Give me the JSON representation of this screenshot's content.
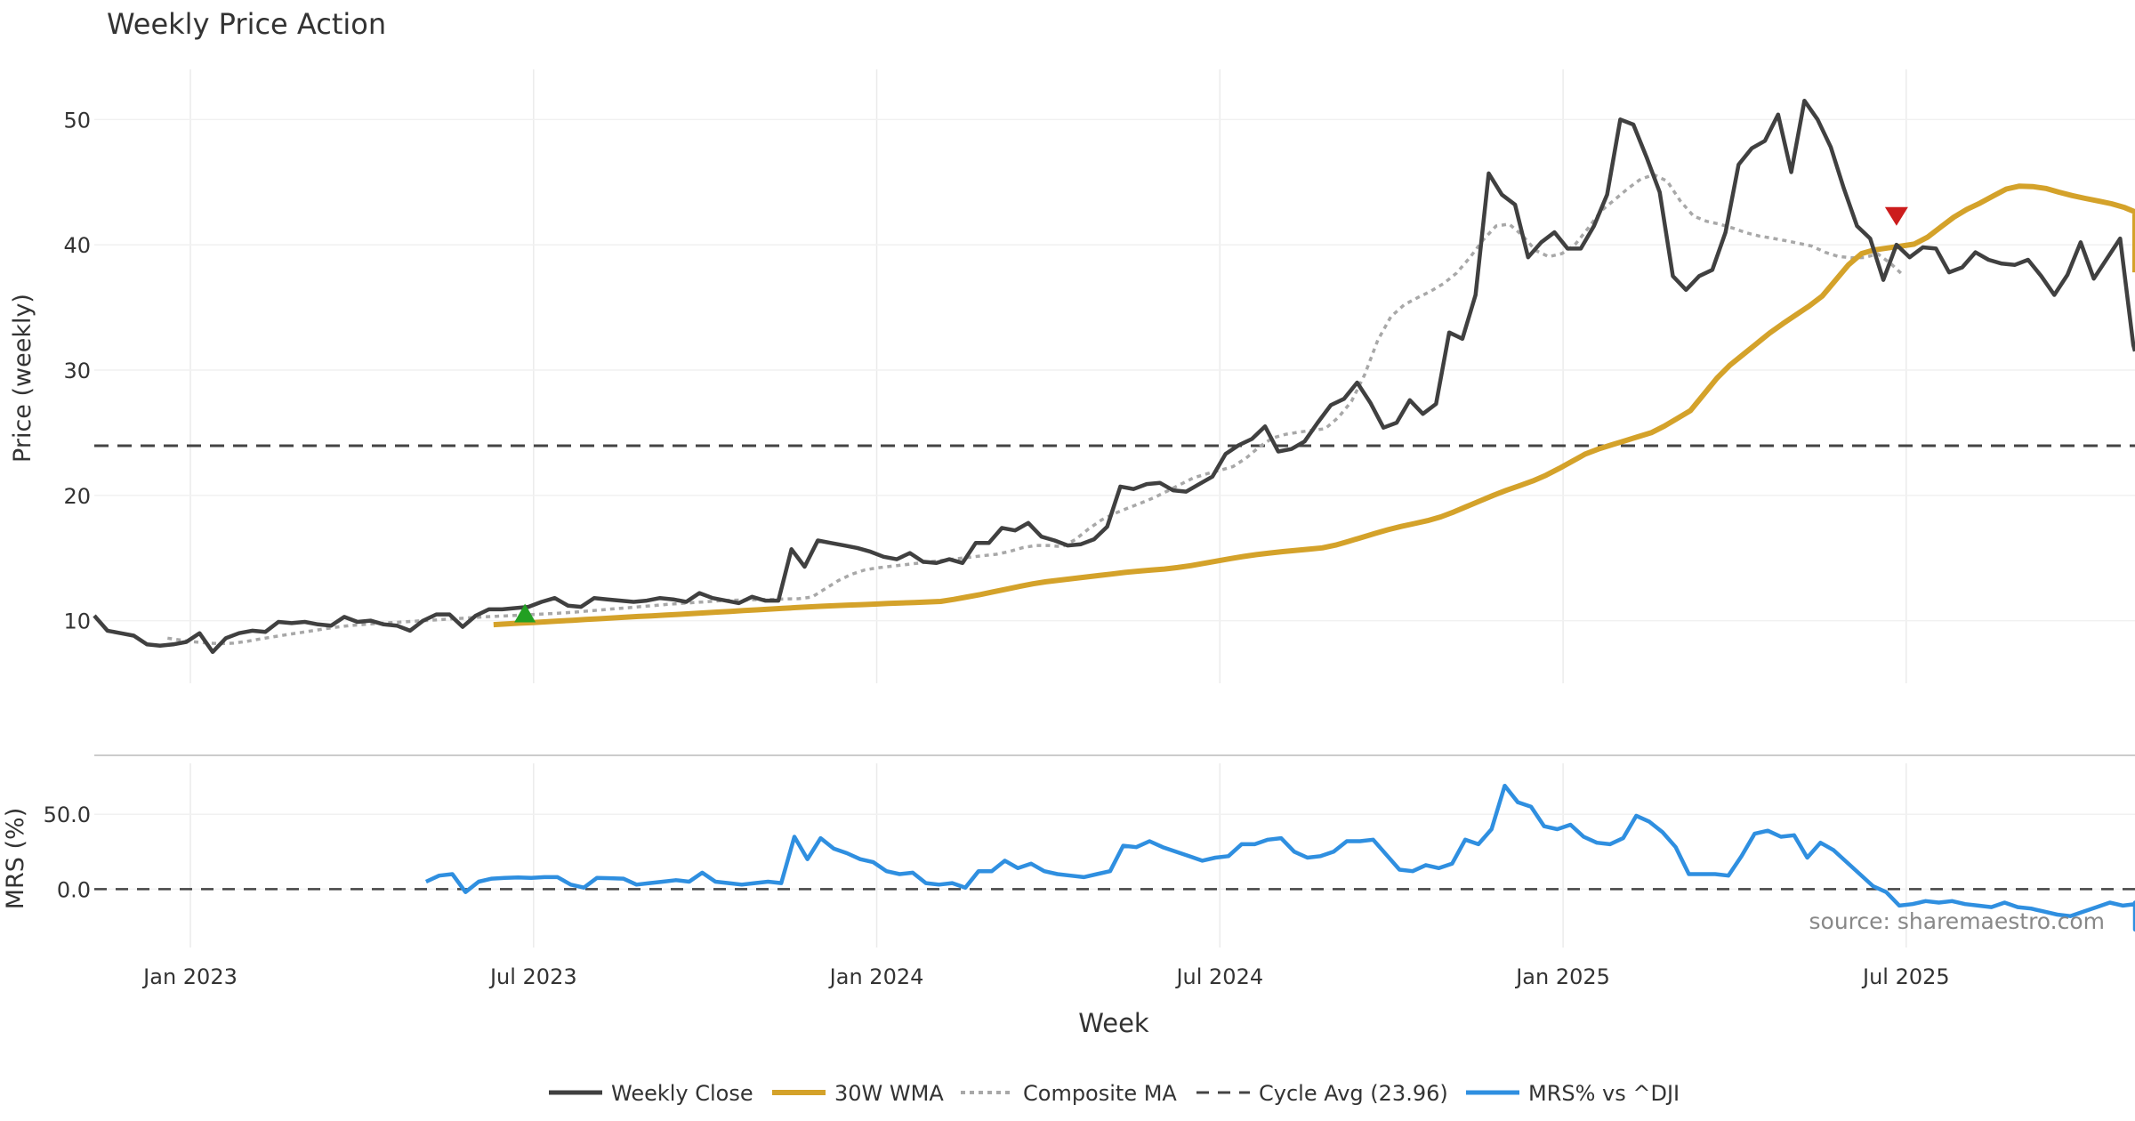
{
  "chart_data": {
    "type": "line",
    "title": "Weekly Price Action",
    "xlabel": "Week",
    "x_ticks": [
      "Jan 2023",
      "Jul 2023",
      "Jan 2024",
      "Jul 2024",
      "Jan 2025",
      "Jul 2025"
    ],
    "x_tick_months": [
      0,
      6,
      12,
      18,
      24,
      30
    ],
    "x_range_months": [
      -1.68,
      34.0
    ],
    "price_panel": {
      "ylabel": "Price (weekly)",
      "ylim": [
        5,
        54
      ],
      "yticks": [
        10,
        20,
        30,
        40,
        50
      ],
      "series": [
        {
          "name": "Weekly Close",
          "color": "#404040",
          "x_start": -1.68,
          "x_step": 0.23,
          "values": [
            10.4,
            9.2,
            9.0,
            8.8,
            8.1,
            8.0,
            8.1,
            8.3,
            9.0,
            7.5,
            8.6,
            9.0,
            9.2,
            9.1,
            9.9,
            9.8,
            9.9,
            9.7,
            9.6,
            10.3,
            9.9,
            10.0,
            9.7,
            9.6,
            9.2,
            10.0,
            10.5,
            10.5,
            9.5,
            10.4,
            10.9,
            10.9,
            11.0,
            11.1,
            11.5,
            11.8,
            11.2,
            11.1,
            11.8,
            11.7,
            11.6,
            11.5,
            11.6,
            11.8,
            11.7,
            11.5,
            12.2,
            11.8,
            11.6,
            11.4,
            11.9,
            11.6,
            11.6,
            15.7,
            14.3,
            16.4,
            16.2,
            16.0,
            15.8,
            15.5,
            15.1,
            14.9,
            15.4,
            14.7,
            14.6,
            14.9,
            14.6,
            16.2,
            16.2,
            17.4,
            17.2,
            17.8,
            16.7,
            16.4,
            16.0,
            16.1,
            16.5,
            17.5,
            20.7,
            20.5,
            20.9,
            21.0,
            20.4,
            20.3,
            20.9,
            21.5,
            23.3,
            24.0,
            24.5,
            25.5,
            23.5,
            23.7,
            24.3,
            25.8,
            27.2,
            27.7,
            29.0,
            27.4,
            25.4,
            25.8,
            27.6,
            26.5,
            27.3,
            33.0,
            32.5,
            36.0,
            45.7,
            44.0,
            43.2,
            39.0,
            40.2,
            41.0,
            39.7,
            39.7,
            41.5,
            44.0,
            50.0,
            49.6,
            47.0,
            44.2,
            37.5,
            36.4,
            37.5,
            38.0,
            41.0,
            46.4,
            47.7,
            48.3,
            50.4,
            45.8,
            51.5,
            50.0,
            47.8,
            44.5,
            41.5,
            40.5,
            37.2,
            40.0,
            39.0,
            39.8,
            39.7,
            37.8,
            38.2,
            39.4,
            38.8,
            38.5,
            38.4,
            38.8,
            37.5,
            36.0,
            37.6,
            40.2,
            37.3,
            38.9,
            40.5,
            32.0,
            31.5
          ]
        },
        {
          "name": "30W WMA",
          "color": "#d4a22a",
          "x_start": 5.3,
          "x_step": 0.23,
          "values": [
            9.68,
            9.74,
            9.8,
            9.85,
            9.91,
            9.97,
            10.03,
            10.09,
            10.15,
            10.21,
            10.27,
            10.33,
            10.38,
            10.44,
            10.5,
            10.56,
            10.62,
            10.68,
            10.74,
            10.8,
            10.86,
            10.92,
            10.98,
            11.04,
            11.1,
            11.15,
            11.2,
            11.24,
            11.28,
            11.32,
            11.37,
            11.41,
            11.45,
            11.49,
            11.53,
            11.7,
            11.89,
            12.08,
            12.3,
            12.51,
            12.73,
            12.94,
            13.1,
            13.23,
            13.35,
            13.48,
            13.6,
            13.72,
            13.85,
            13.95,
            14.03,
            14.12,
            14.24,
            14.39,
            14.57,
            14.76,
            14.95,
            15.12,
            15.27,
            15.4,
            15.51,
            15.61,
            15.7,
            15.81,
            16.03,
            16.33,
            16.64,
            16.96,
            17.26,
            17.52,
            17.75,
            17.98,
            18.28,
            18.68,
            19.12,
            19.56,
            20.0,
            20.4,
            20.77,
            21.15,
            21.6,
            22.14,
            22.72,
            23.3,
            23.7,
            24.03,
            24.35,
            24.68,
            25.0,
            25.53,
            26.15,
            26.77,
            28.06,
            29.35,
            30.4,
            31.25,
            32.1,
            32.95,
            33.7,
            34.4,
            35.1,
            35.9,
            37.15,
            38.4,
            39.3,
            39.6,
            39.75,
            39.9,
            40.05,
            40.6,
            41.4,
            42.2,
            42.83,
            43.33,
            43.9,
            44.45,
            44.68,
            44.65,
            44.5,
            44.2,
            43.93,
            43.7,
            43.5,
            43.28,
            42.97,
            42.63,
            42.3,
            41.97,
            41.63,
            41.3,
            40.97,
            40.63,
            40.3,
            40.1,
            39.9,
            39.7,
            39.4,
            38.6,
            37.8
          ]
        },
        {
          "name": "Composite MA",
          "color": "#a8a8a8",
          "x_start": -0.4,
          "x_step": 0.23,
          "values": [
            8.6,
            8.45,
            8.31,
            8.22,
            8.16,
            8.2,
            8.34,
            8.53,
            8.7,
            8.87,
            9.03,
            9.19,
            9.35,
            9.5,
            9.62,
            9.7,
            9.77,
            9.84,
            9.9,
            9.97,
            10.03,
            10.1,
            10.16,
            10.23,
            10.3,
            10.35,
            10.4,
            10.45,
            10.5,
            10.55,
            10.61,
            10.68,
            10.77,
            10.86,
            10.95,
            11.03,
            11.12,
            11.21,
            11.3,
            11.37,
            11.44,
            11.51,
            11.58,
            11.63,
            11.65,
            11.68,
            11.7,
            11.73,
            11.75,
            11.89,
            12.55,
            13.2,
            13.7,
            14.05,
            14.22,
            14.34,
            14.46,
            14.58,
            14.7,
            14.82,
            14.94,
            15.06,
            15.18,
            15.3,
            15.52,
            15.82,
            16.0,
            16.0,
            15.9,
            16.46,
            17.31,
            18.04,
            18.56,
            18.98,
            19.39,
            19.82,
            20.34,
            20.87,
            21.4,
            21.72,
            22.0,
            22.3,
            22.98,
            23.87,
            24.58,
            24.87,
            25.05,
            25.19,
            25.32,
            26.21,
            27.5,
            29.63,
            32.38,
            34.26,
            35.2,
            35.76,
            36.28,
            36.9,
            37.75,
            38.98,
            40.38,
            41.5,
            41.65,
            40.75,
            39.55,
            39.05,
            39.3,
            40.02,
            41.34,
            42.72,
            43.59,
            44.48,
            45.25,
            45.59,
            45.08,
            43.5,
            42.3,
            41.88,
            41.64,
            41.33,
            40.96,
            40.7,
            40.52,
            40.33,
            40.12,
            39.9,
            39.41,
            39.07,
            38.96,
            38.98,
            39.28,
            38.5,
            37.5
          ]
        },
        {
          "name": "Cycle Avg (23.96)",
          "color": "#444444",
          "constant": 23.96
        }
      ],
      "signals": [
        {
          "type": "buy",
          "x_month": 5.85,
          "y": 10.5,
          "color": "#22a022"
        },
        {
          "type": "sell",
          "x_month": 29.83,
          "y": 42.3,
          "color": "#cc1c1c"
        }
      ]
    },
    "mrs_panel": {
      "ylabel": "MRS (%)",
      "ylim": [
        -39,
        84
      ],
      "yticks": [
        0.0,
        50.0
      ],
      "ytick_labels": [
        "0.0",
        "50.0"
      ],
      "series": [
        {
          "name": "MRS% vs ^DJI",
          "color": "#2f8fe0",
          "x_start": 4.12,
          "x_step": 0.23,
          "values": [
            5,
            9,
            10,
            -2,
            5,
            7,
            7.5,
            7.8,
            7.5,
            8,
            8,
            3,
            1,
            7.5,
            7.3,
            7,
            3,
            4,
            5,
            6,
            5,
            11,
            5,
            4,
            3,
            4,
            5,
            4,
            35,
            20,
            34,
            27,
            24,
            20,
            18,
            12,
            10,
            11,
            4,
            3,
            4,
            1,
            12,
            12,
            19,
            14,
            17,
            12,
            10,
            9,
            8,
            10,
            12,
            29,
            28,
            32,
            28,
            25,
            22,
            19,
            21,
            22,
            30,
            30,
            33,
            34,
            25,
            21,
            22,
            25,
            32,
            32,
            33,
            23,
            13,
            12,
            16,
            14,
            17,
            33,
            30,
            40,
            69,
            58,
            55,
            42,
            40,
            43,
            35,
            31,
            30,
            34,
            49,
            45,
            38,
            28,
            10,
            10,
            10,
            9,
            22,
            37,
            39,
            35,
            36,
            21,
            31,
            26,
            18,
            10,
            2,
            -2,
            -11,
            -10,
            -8,
            -9,
            -8,
            -10,
            -11,
            -12,
            -9,
            -12,
            -13,
            -15,
            -17,
            -18,
            -15,
            -12,
            -9,
            -11,
            -10,
            -9,
            -27,
            -26
          ]
        },
        {
          "name": "MRS zero line",
          "color": "#444444",
          "constant": 0.0
        }
      ]
    },
    "annotations": [
      "source: sharemaestro.com"
    ],
    "legend_position": "bottom-center",
    "legend": [
      "Weekly Close",
      "30W WMA",
      "Composite MA",
      "Cycle Avg (23.96)",
      "MRS% vs ^DJI"
    ],
    "grid": true
  }
}
